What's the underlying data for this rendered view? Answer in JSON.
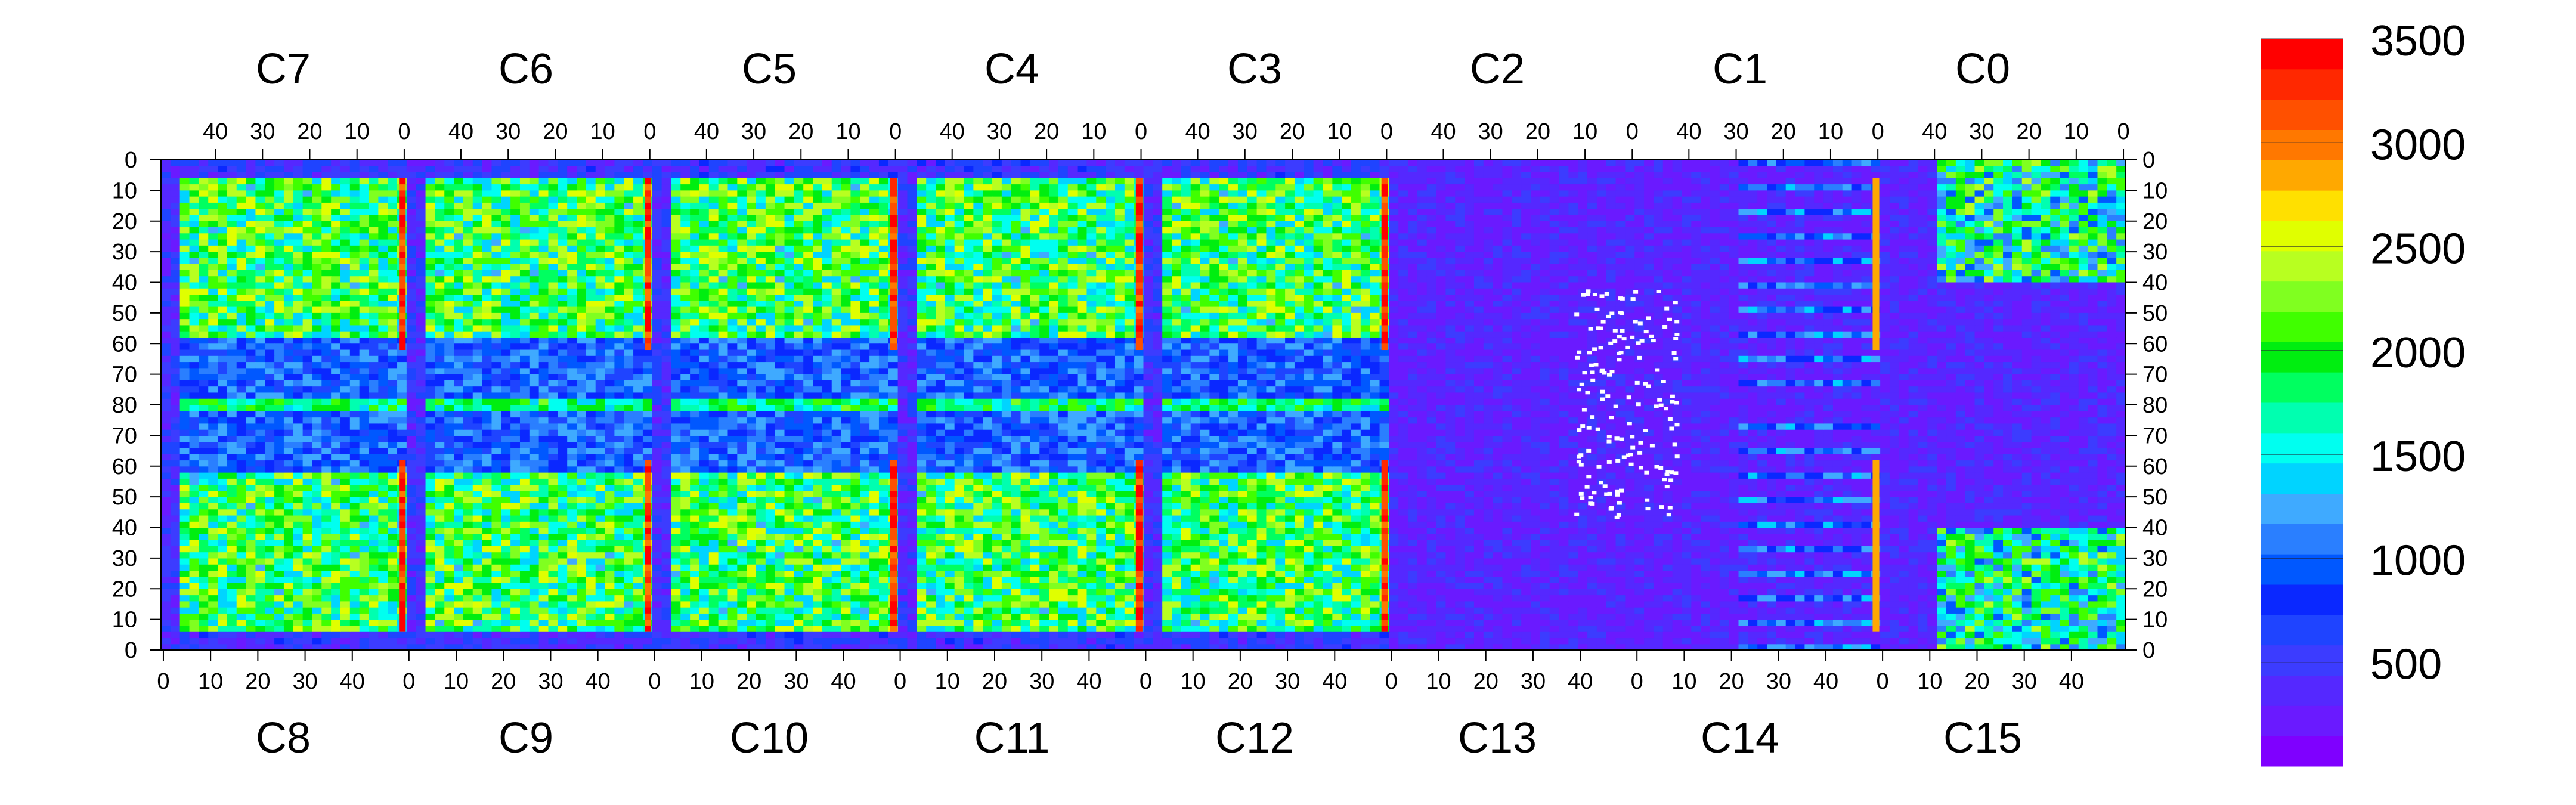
{
  "chart_data": {
    "type": "heatmap",
    "title": "",
    "xlabel": "",
    "ylabel": "",
    "top_chip_labels": [
      "C7",
      "C6",
      "C5",
      "C4",
      "C3",
      "C2",
      "C1",
      "C0"
    ],
    "bottom_chip_labels": [
      "C8",
      "C9",
      "C10",
      "C11",
      "C12",
      "C13",
      "C14",
      "C15"
    ],
    "top_tick_labels": [
      "40",
      "30",
      "20",
      "10",
      "0"
    ],
    "bottom_tick_labels": [
      "0",
      "10",
      "20",
      "30",
      "40"
    ],
    "y_tick_labels": [
      "0",
      "10",
      "20",
      "30",
      "40",
      "50",
      "60",
      "70",
      "80",
      "70",
      "60",
      "50",
      "40",
      "30",
      "20",
      "10",
      "0"
    ],
    "colorbar": {
      "range": [
        0,
        3500
      ],
      "tick_labels": [
        "500",
        "1000",
        "1500",
        "2000",
        "2500",
        "3000",
        "3500"
      ],
      "tick_values": [
        500,
        1000,
        1500,
        2000,
        2500,
        3000,
        3500
      ],
      "colors": [
        "#7F00FF",
        "#6A1AFF",
        "#5528FF",
        "#3C3CFF",
        "#1F44FF",
        "#0A28FF",
        "#0058FF",
        "#2A7FFF",
        "#3FAAFF",
        "#00D4FF",
        "#00FFF0",
        "#00FFB0",
        "#00FF60",
        "#00EE10",
        "#40FF00",
        "#80FF20",
        "#B8FF20",
        "#E0FF00",
        "#FFE000",
        "#FFA800",
        "#FF7800",
        "#FF5000",
        "#FF2800",
        "#FF0000"
      ]
    },
    "chips_per_row": 8,
    "columns_per_chip": 52,
    "rows": 80,
    "dead_pixel_color": "#FFFFFF",
    "summary": {
      "typical_counts_active_region": [
        1300,
        2600
      ],
      "typical_counts_low_regions": [
        100,
        600
      ],
      "hot_column_counts": 3500
    }
  }
}
